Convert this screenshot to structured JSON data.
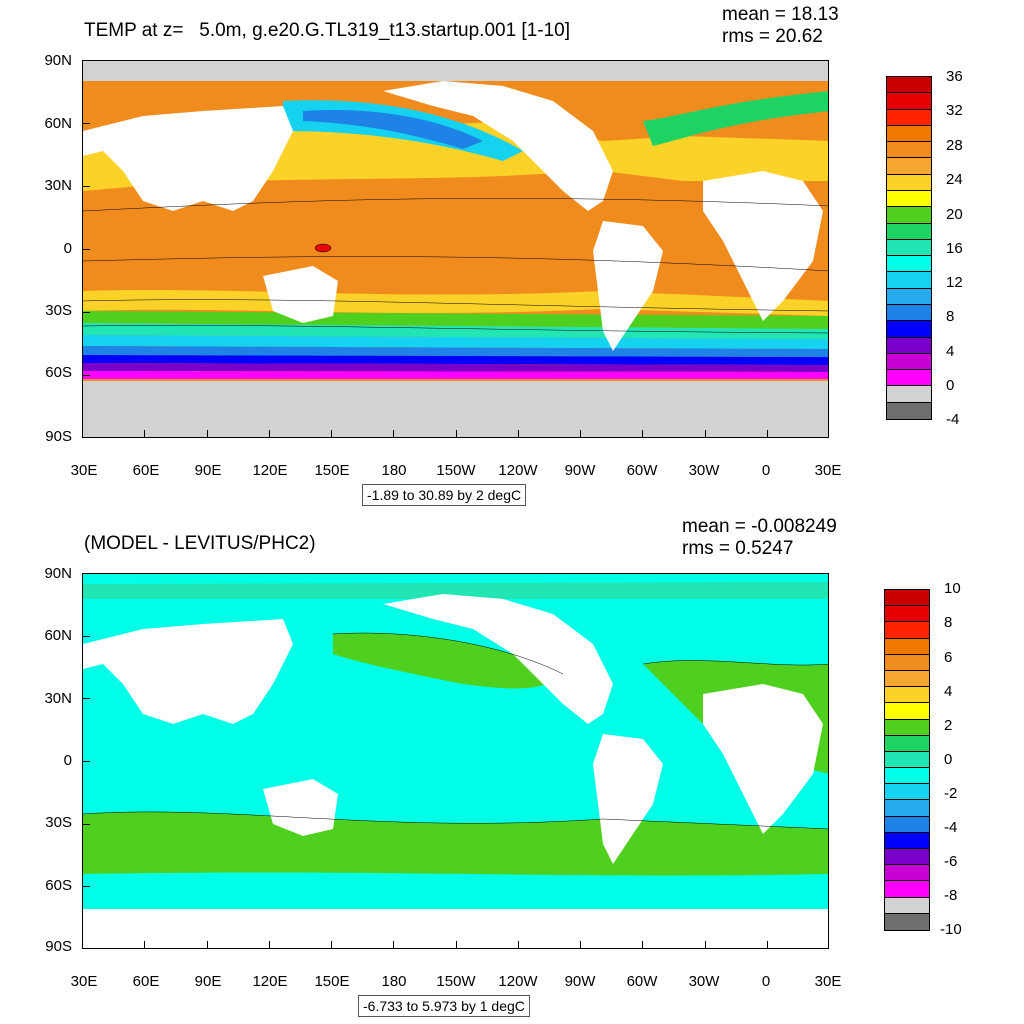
{
  "panels": [
    {
      "id": "temp",
      "title": "TEMP at z=   5.0m, g.e20.G.TL319_t13.startup.001 [1-10]",
      "mean": "mean = 18.13",
      "rms": "rms = 20.62",
      "range_label": "-1.89 to 30.89 by 2 degC",
      "colorbar_labels": [
        "36",
        "32",
        "28",
        "24",
        "20",
        "16",
        "12",
        "8",
        "4",
        "0",
        "-4"
      ],
      "colorbar_colors": [
        "#c80000",
        "#e60000",
        "#ff2400",
        "#ee7800",
        "#f08c1e",
        "#f5a632",
        "#fbd228",
        "#ffff00",
        "#50d01e",
        "#1ed264",
        "#21e6b4",
        "#00ffe6",
        "#14d2f0",
        "#28aaf0",
        "#1e82e6",
        "#0000ff",
        "#7800c8",
        "#c800d2",
        "#ff00ff",
        "#d2d2d2",
        "#6e6e6e"
      ]
    },
    {
      "id": "diff",
      "title": "(MODEL - LEVITUS/PHC2)",
      "mean": "mean = -0.008249",
      "rms": "rms = 0.5247",
      "range_label": "-6.733 to 5.973 by 1 degC",
      "colorbar_labels": [
        "10",
        "8",
        "6",
        "4",
        "2",
        "0",
        "-2",
        "-4",
        "-6",
        "-8",
        "-10"
      ],
      "colorbar_colors": [
        "#c80000",
        "#e60000",
        "#ff2400",
        "#ee7800",
        "#f08c1e",
        "#f5a632",
        "#fbd228",
        "#ffff00",
        "#50d01e",
        "#1ed264",
        "#21e6b4",
        "#00ffe6",
        "#14d2f0",
        "#28aaf0",
        "#1e82e6",
        "#0000ff",
        "#7800c8",
        "#c800d2",
        "#ff00ff",
        "#d2d2d2",
        "#6e6e6e"
      ]
    }
  ],
  "lat_labels": [
    "90N",
    "60N",
    "30N",
    "0",
    "30S",
    "60S",
    "90S"
  ],
  "lon_labels": [
    "30E",
    "60E",
    "90E",
    "120E",
    "150E",
    "180",
    "150W",
    "120W",
    "90W",
    "60W",
    "30W",
    "0",
    "30E"
  ],
  "colors": {
    "land": "#ffffff",
    "ice": "#d2d2d2",
    "warm_pool": "#f08c1e",
    "peak": "#e60000",
    "diff_ocean": "#00ffe6",
    "diff_pos": "#50d01e"
  }
}
